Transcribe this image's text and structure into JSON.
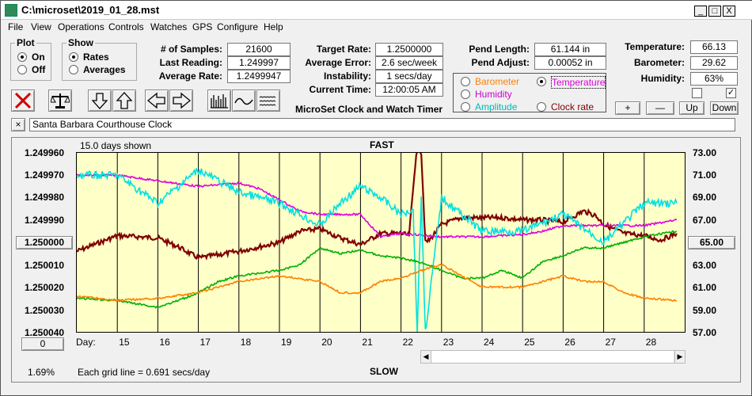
{
  "window": {
    "title": "C:\\microset\\2019_01_28.mst",
    "controls": {
      "minimize": "_",
      "maximize": "□",
      "close": "X"
    }
  },
  "menu": [
    "File",
    "View",
    "Operations",
    "Controls",
    "Watches",
    "GPS",
    "Configure",
    "Help"
  ],
  "plot_group": {
    "title": "Plot",
    "on": "On",
    "off": "Off",
    "selected": "On"
  },
  "show_group": {
    "title": "Show",
    "rates": "Rates",
    "averages": "Averages",
    "selected": "Rates"
  },
  "stats": {
    "samples_label": "# of Samples:",
    "samples": "21600",
    "last_label": "Last Reading:",
    "last": "1.249997",
    "avg_rate_label": "Average Rate:",
    "avg_rate": "1.2499947",
    "target_label": "Target Rate:",
    "target": "1.2500000",
    "avg_err_label": "Average Error:",
    "avg_err": "2.6 sec/week",
    "instab_label": "Instability:",
    "instab": "1 secs/day",
    "time_label": "Current Time:",
    "time": "12:00:05 AM",
    "pend_len_label": "Pend Length:",
    "pend_len": "61.144 in",
    "pend_adj_label": "Pend Adjust:",
    "pend_adj": "0.00052 in",
    "temp_label": "Temperature:",
    "temp": "66.13",
    "baro_label": "Barometer:",
    "baro": "29.62",
    "hum_label": "Humidity:",
    "hum": "63%"
  },
  "subtitle": "MicroSet Clock and Watch Timer",
  "sensor_options": {
    "barometer": "Barometer",
    "temperature": "Temperature",
    "humidity": "Humidity",
    "amplitude": "Amplitude",
    "clock_rate": "Clock rate",
    "selected": "Temperature"
  },
  "small_buttons": {
    "plus": "+",
    "minus": "—",
    "up": "Up",
    "down": "Down"
  },
  "watch_name": "Santa Barbara Courthouse Clock",
  "close_watch": "×",
  "chart_data": {
    "type": "line",
    "title_top": "FAST",
    "title_bottom": "SLOW",
    "days_shown": "15.0 days shown",
    "grid_note": "Each grid line = 0.691 secs/day",
    "x_label": "Day:",
    "x_ticks": [
      "15",
      "16",
      "17",
      "18",
      "19",
      "20",
      "21",
      "22",
      "23",
      "24",
      "25",
      "26",
      "27",
      "28"
    ],
    "y_ticks_left": [
      "1.249960",
      "1.249970",
      "1.249980",
      "1.249990",
      "1.250000",
      "1.250010",
      "1.250020",
      "1.250030",
      "1.250040"
    ],
    "y_center_button": "1.250000",
    "y_ticks_right": [
      "73.00",
      "71.00",
      "69.00",
      "67.00",
      "65.00",
      "63.00",
      "61.00",
      "59.00",
      "57.00"
    ],
    "right_center_button": "65.00",
    "left_bottom_button": "0",
    "percent": "1.69%",
    "xlim": [
      14,
      29
    ],
    "ylim_rate": [
      1.24996,
      1.25004
    ],
    "series": [
      {
        "name": "Clock rate",
        "color": "#800000",
        "x": [
          14.0,
          15.0,
          16.0,
          16.5,
          17.0,
          18.0,
          19.0,
          19.5,
          20.0,
          20.5,
          21.0,
          21.5,
          22.0,
          22.2,
          22.4,
          22.5,
          22.6,
          22.7,
          23.0,
          23.5,
          24.0,
          24.5,
          25.0,
          25.5,
          26.0,
          26.5,
          26.8,
          27.0,
          27.5,
          28.0,
          28.4,
          28.8
        ],
        "y": [
          1.250004,
          1.249997,
          1.249998,
          1.250002,
          1.250007,
          1.250004,
          1.25,
          1.249995,
          1.249994,
          1.249998,
          1.250001,
          1.249996,
          1.249996,
          1.249997,
          1.249955,
          1.24996,
          1.25,
          1.249999,
          1.249992,
          1.249989,
          1.249989,
          1.249989,
          1.24999,
          1.24999,
          1.249991,
          1.249986,
          1.249988,
          1.249992,
          1.249996,
          1.249997,
          1.249999,
          1.249996
        ]
      },
      {
        "name": "Temperature",
        "color": "#dd00dd",
        "x": [
          14.0,
          15.0,
          16.0,
          17.0,
          18.0,
          18.5,
          19.5,
          20.0,
          21.0,
          21.5,
          22.0,
          23.0,
          24.0,
          25.0,
          25.5,
          26.0,
          27.0,
          28.0,
          28.8
        ],
        "y": [
          71.0,
          71.0,
          70.5,
          70.0,
          70.3,
          69.8,
          67.8,
          67.5,
          67.5,
          65.5,
          65.8,
          65.5,
          65.5,
          65.7,
          66.0,
          66.5,
          66.5,
          66.5,
          67.0
        ]
      },
      {
        "name": "Humidity",
        "color": "#00e0e0",
        "x": [
          14.0,
          15.0,
          16.0,
          17.0,
          18.0,
          19.0,
          20.0,
          20.5,
          21.0,
          21.5,
          22.0,
          22.3,
          22.4,
          22.5,
          22.6,
          23.0,
          24.0,
          25.0,
          26.0,
          27.0,
          28.0,
          28.8
        ],
        "y": [
          71.0,
          71.0,
          68.5,
          71.5,
          69.5,
          68.5,
          66.5,
          68.5,
          70.0,
          69.0,
          67.5,
          68.0,
          57.0,
          69.0,
          57.0,
          69.0,
          66.0,
          66.0,
          67.5,
          65.0,
          68.5,
          68.5
        ]
      },
      {
        "name": "Amplitude",
        "color": "#00b000",
        "x": [
          14.0,
          15.0,
          16.0,
          16.5,
          17.0,
          17.5,
          18.0,
          19.0,
          19.5,
          20.0,
          20.5,
          21.0,
          21.5,
          22.0,
          22.5,
          23.0,
          23.5,
          24.0,
          24.5,
          25.0,
          25.5,
          26.0,
          26.5,
          27.0,
          27.5,
          28.0,
          28.8
        ],
        "y": [
          60.0,
          59.8,
          59.2,
          59.8,
          60.5,
          61.5,
          62.0,
          62.5,
          63.0,
          64.5,
          64.0,
          64.3,
          63.8,
          63.6,
          63.2,
          62.5,
          61.8,
          61.8,
          62.5,
          61.8,
          63.3,
          63.8,
          64.5,
          64.5,
          65.0,
          65.5,
          66.0
        ]
      },
      {
        "name": "Barometer",
        "color": "#ff8000",
        "x": [
          14.0,
          15.0,
          16.0,
          17.0,
          18.0,
          19.0,
          20.0,
          20.5,
          21.0,
          21.5,
          22.0,
          22.5,
          23.0,
          23.5,
          24.0,
          24.5,
          25.0,
          25.5,
          26.0,
          26.5,
          27.0,
          27.5,
          28.0,
          28.8
        ],
        "y": [
          60.2,
          59.8,
          60.0,
          60.5,
          61.5,
          62.0,
          61.5,
          60.5,
          60.5,
          61.5,
          61.8,
          62.5,
          63.0,
          62.0,
          61.0,
          61.0,
          61.0,
          61.5,
          62.0,
          61.5,
          61.5,
          60.5,
          60.0,
          59.8
        ]
      }
    ]
  }
}
